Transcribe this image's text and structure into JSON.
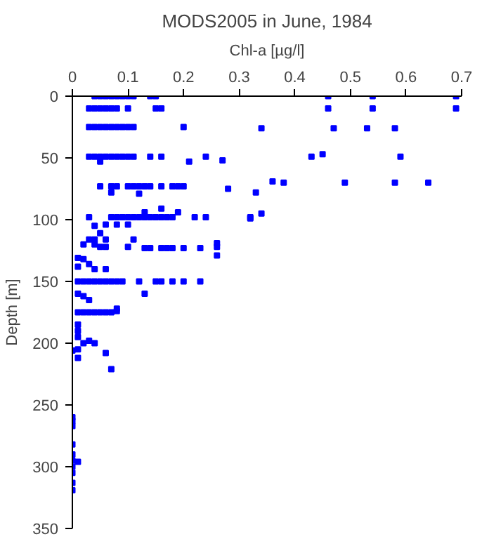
{
  "chart_data": {
    "type": "scatter",
    "title": "MODS2005 in June, 1984",
    "xlabel": "Chl-a [µg/l]",
    "ylabel": "Depth [m]",
    "marker": "square",
    "grid": false,
    "xlim": [
      0,
      0.7
    ],
    "xticks": [
      0,
      0.1,
      0.2,
      0.3,
      0.4,
      0.5,
      0.6,
      0.7
    ],
    "ylim": [
      350,
      0
    ],
    "yticks": [
      0,
      50,
      100,
      150,
      200,
      250,
      300,
      350
    ],
    "series": [
      {
        "color": "#0000ff",
        "x": [
          0.04,
          0.05,
          0.06,
          0.07,
          0.08,
          0.09,
          0.1,
          0.11,
          0.14,
          0.15,
          0.46,
          0.54,
          0.69,
          0.03,
          0.04,
          0.05,
          0.06,
          0.07,
          0.08,
          0.1,
          0.15,
          0.16,
          0.46,
          0.54,
          0.69,
          0.03,
          0.04,
          0.05,
          0.06,
          0.07,
          0.08,
          0.09,
          0.1,
          0.11,
          0.2,
          0.34,
          0.47,
          0.53,
          0.58,
          0.03,
          0.04,
          0.05,
          0.06,
          0.07,
          0.08,
          0.09,
          0.1,
          0.11,
          0.14,
          0.16,
          0.21,
          0.24,
          0.27,
          0.05,
          0.43,
          0.45,
          0.59,
          0.05,
          0.07,
          0.08,
          0.1,
          0.11,
          0.12,
          0.13,
          0.14,
          0.16,
          0.18,
          0.19,
          0.2,
          0.07,
          0.12,
          0.28,
          0.36,
          0.38,
          0.49,
          0.58,
          0.64,
          0.33,
          0.32,
          0.34,
          0.03,
          0.07,
          0.08,
          0.09,
          0.1,
          0.11,
          0.12,
          0.13,
          0.14,
          0.15,
          0.16,
          0.17,
          0.18,
          0.22,
          0.24,
          0.13,
          0.16,
          0.19,
          0.32,
          0.04,
          0.06,
          0.08,
          0.1,
          0.05,
          0.03,
          0.04,
          0.06,
          0.11,
          0.02,
          0.04,
          0.05,
          0.06,
          0.1,
          0.13,
          0.14,
          0.16,
          0.17,
          0.18,
          0.2,
          0.23,
          0.26,
          0.26,
          0.26,
          0.01,
          0.02,
          0.03,
          0.01,
          0.04,
          0.06,
          0.01,
          0.02,
          0.03,
          0.04,
          0.05,
          0.06,
          0.07,
          0.08,
          0.09,
          0.12,
          0.15,
          0.16,
          0.18,
          0.2,
          0.23,
          0.13,
          0.02,
          0.03,
          0.01,
          0.02,
          0.03,
          0.04,
          0.05,
          0.06,
          0.07,
          0.08,
          0.08,
          0.01,
          0.01,
          0.01,
          0.01,
          0.01,
          0.03,
          0.02,
          0.04,
          0.06,
          0.07,
          0.01,
          0.0,
          0.0,
          0.0,
          0.0,
          0.0,
          0.0,
          0.0,
          0.0,
          0.0,
          0.01,
          0.0,
          0.0
        ],
        "values": [
          0,
          0,
          0,
          0,
          0,
          0,
          0,
          0,
          0,
          0,
          0,
          0,
          0,
          10,
          10,
          10,
          10,
          10,
          10,
          10,
          10,
          10,
          10,
          10,
          10,
          25,
          25,
          25,
          25,
          25,
          25,
          25,
          25,
          25,
          25,
          26,
          26,
          26,
          26,
          49,
          49,
          49,
          49,
          49,
          49,
          49,
          49,
          49,
          49,
          49,
          53,
          49,
          52,
          53,
          49,
          47,
          49,
          73,
          73,
          73,
          73,
          73,
          73,
          73,
          73,
          73,
          73,
          73,
          73,
          78,
          79,
          75,
          69,
          70,
          70,
          70,
          70,
          78,
          99,
          95,
          98,
          98,
          98,
          98,
          98,
          98,
          98,
          98,
          98,
          98,
          98,
          98,
          98,
          98,
          98,
          94,
          91,
          94,
          98,
          105,
          104,
          104,
          104,
          111,
          116,
          116,
          116,
          116,
          120,
          120,
          122,
          122,
          122,
          123,
          123,
          123,
          123,
          123,
          123,
          123,
          119,
          122,
          129,
          131,
          132,
          136,
          138,
          140,
          140,
          150,
          150,
          150,
          150,
          150,
          150,
          150,
          150,
          150,
          150,
          150,
          150,
          150,
          150,
          150,
          160,
          162,
          165,
          175,
          175,
          175,
          175,
          175,
          175,
          175,
          174,
          172,
          160,
          185,
          190,
          195,
          205,
          198,
          200,
          200,
          208,
          221,
          212,
          206,
          260,
          263,
          267,
          282,
          290,
          295,
          300,
          305,
          296,
          313,
          319
        ]
      }
    ]
  }
}
